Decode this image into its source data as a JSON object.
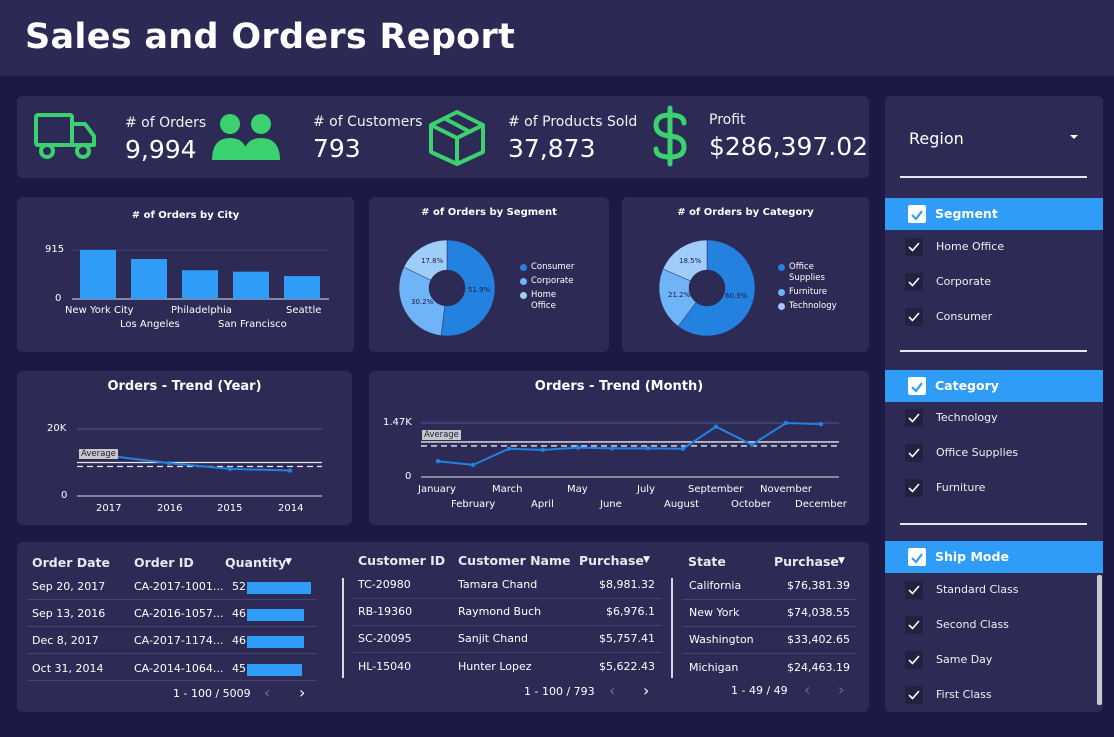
{
  "header": {
    "title": "Sales and Orders Report"
  },
  "colors": {
    "bg": "#1c1a45",
    "card": "#2d2b56",
    "accent_green": "#3bd16f",
    "bar_blue": "#2f9cf7",
    "light_blue": "#6fb4f7",
    "pale_blue": "#9ecdfa"
  },
  "kpis": [
    {
      "icon": "truck-icon",
      "label": "# of Orders",
      "value": "9,994"
    },
    {
      "icon": "customers-icon",
      "label": "# of Customers",
      "value": "793"
    },
    {
      "icon": "box-icon",
      "label": "# of Products Sold",
      "value": "37,873"
    },
    {
      "icon": "dollar-icon",
      "label": "Profit",
      "value": "$286,397.02"
    }
  ],
  "city_chart": {
    "title": "# of Orders by City",
    "ytick_top": "915",
    "ytick_bottom": "0",
    "categories": [
      "New York City",
      "Los Angeles",
      "Philadelphia",
      "San Francisco",
      "Seattle"
    ]
  },
  "segment_chart": {
    "title": "# of Orders by Segment",
    "legend": [
      "Consumer",
      "Corporate",
      "Home Office"
    ],
    "labels": [
      "51.9%",
      "30.2%",
      "17.8%"
    ]
  },
  "category_chart": {
    "title": "# of Orders by Category",
    "legend": [
      "Office Supplies",
      "Furniture",
      "Technology"
    ],
    "labels": [
      "60.3%",
      "21.2%",
      "18.5%"
    ]
  },
  "year_chart": {
    "title": "Orders - Trend (Year)",
    "ytick_top": "20K",
    "ytick_bottom": "0",
    "avg_label": "Average",
    "categories": [
      "2017",
      "2016",
      "2015",
      "2014"
    ]
  },
  "month_chart": {
    "title": "Orders - Trend (Month)",
    "ytick_top": "1.47K",
    "ytick_bottom": "0",
    "avg_label": "Average",
    "categories": [
      "January",
      "February",
      "March",
      "April",
      "May",
      "June",
      "July",
      "August",
      "September",
      "October",
      "November",
      "December"
    ]
  },
  "chart_data": [
    {
      "type": "bar",
      "title": "# of Orders by City",
      "categories": [
        "New York City",
        "Los Angeles",
        "Philadelphia",
        "San Francisco",
        "Seattle"
      ],
      "values": [
        915,
        747,
        537,
        510,
        428
      ],
      "ylim": [
        0,
        915
      ]
    },
    {
      "type": "pie",
      "title": "# of Orders by Segment",
      "categories": [
        "Consumer",
        "Corporate",
        "Home Office"
      ],
      "values": [
        51.9,
        30.2,
        17.8
      ]
    },
    {
      "type": "pie",
      "title": "# of Orders by Category",
      "categories": [
        "Office Supplies",
        "Furniture",
        "Technology"
      ],
      "values": [
        60.3,
        21.2,
        18.5
      ]
    },
    {
      "type": "line",
      "title": "Orders - Trend (Year)",
      "categories": [
        "2017",
        "2016",
        "2015",
        "2014"
      ],
      "values": [
        12000,
        9800,
        8100,
        7600
      ],
      "average": 9400,
      "ylim": [
        0,
        20000
      ]
    },
    {
      "type": "line",
      "title": "Orders - Trend (Month)",
      "categories": [
        "January",
        "February",
        "March",
        "April",
        "May",
        "June",
        "July",
        "August",
        "September",
        "October",
        "November",
        "December"
      ],
      "values": [
        430,
        330,
        770,
        740,
        800,
        780,
        780,
        770,
        1370,
        880,
        1470,
        1440
      ],
      "average": 900,
      "ylim": [
        0,
        1470
      ]
    }
  ],
  "orders_table": {
    "headers": {
      "date": "Order Date",
      "id": "Order ID",
      "qty": "Quantity"
    },
    "rows": [
      {
        "date": "Sep 20, 2017",
        "id": "CA-2017-1001...",
        "qty": "52",
        "frac": 1.0
      },
      {
        "date": "Sep 13, 2016",
        "id": "CA-2016-1057...",
        "qty": "46",
        "frac": 0.885
      },
      {
        "date": "Dec 8, 2017",
        "id": "CA-2017-1174...",
        "qty": "46",
        "frac": 0.885
      },
      {
        "date": "Oct 31, 2014",
        "id": "CA-2014-1064...",
        "qty": "45",
        "frac": 0.865
      }
    ],
    "pager": "1 - 100 / 5009"
  },
  "customers_table": {
    "headers": {
      "id": "Customer ID",
      "name": "Customer Name",
      "purchase": "Purchase"
    },
    "rows": [
      {
        "id": "TC-20980",
        "name": "Tamara Chand",
        "purchase": "$8,981.32"
      },
      {
        "id": "RB-19360",
        "name": "Raymond Buch",
        "purchase": "$6,976.1"
      },
      {
        "id": "SC-20095",
        "name": "Sanjit Chand",
        "purchase": "$5,757.41"
      },
      {
        "id": "HL-15040",
        "name": "Hunter Lopez",
        "purchase": "$5,622.43"
      }
    ],
    "pager": "1 - 100 / 793"
  },
  "states_table": {
    "headers": {
      "state": "State",
      "purchase": "Purchase"
    },
    "rows": [
      {
        "state": "California",
        "purchase": "$76,381.39"
      },
      {
        "state": "New York",
        "purchase": "$74,038.55"
      },
      {
        "state": "Washington",
        "purchase": "$33,402.65"
      },
      {
        "state": "Michigan",
        "purchase": "$24,463.19"
      }
    ],
    "pager": "1 - 49 / 49"
  },
  "sidebar": {
    "region_label": "Region",
    "segment": {
      "title": "Segment",
      "items": [
        "Home Office",
        "Corporate",
        "Consumer"
      ]
    },
    "category": {
      "title": "Category",
      "items": [
        "Technology",
        "Office Supplies",
        "Furniture"
      ]
    },
    "ship_mode": {
      "title": "Ship Mode",
      "items": [
        "Standard Class",
        "Second Class",
        "Same Day",
        "First Class"
      ]
    }
  }
}
